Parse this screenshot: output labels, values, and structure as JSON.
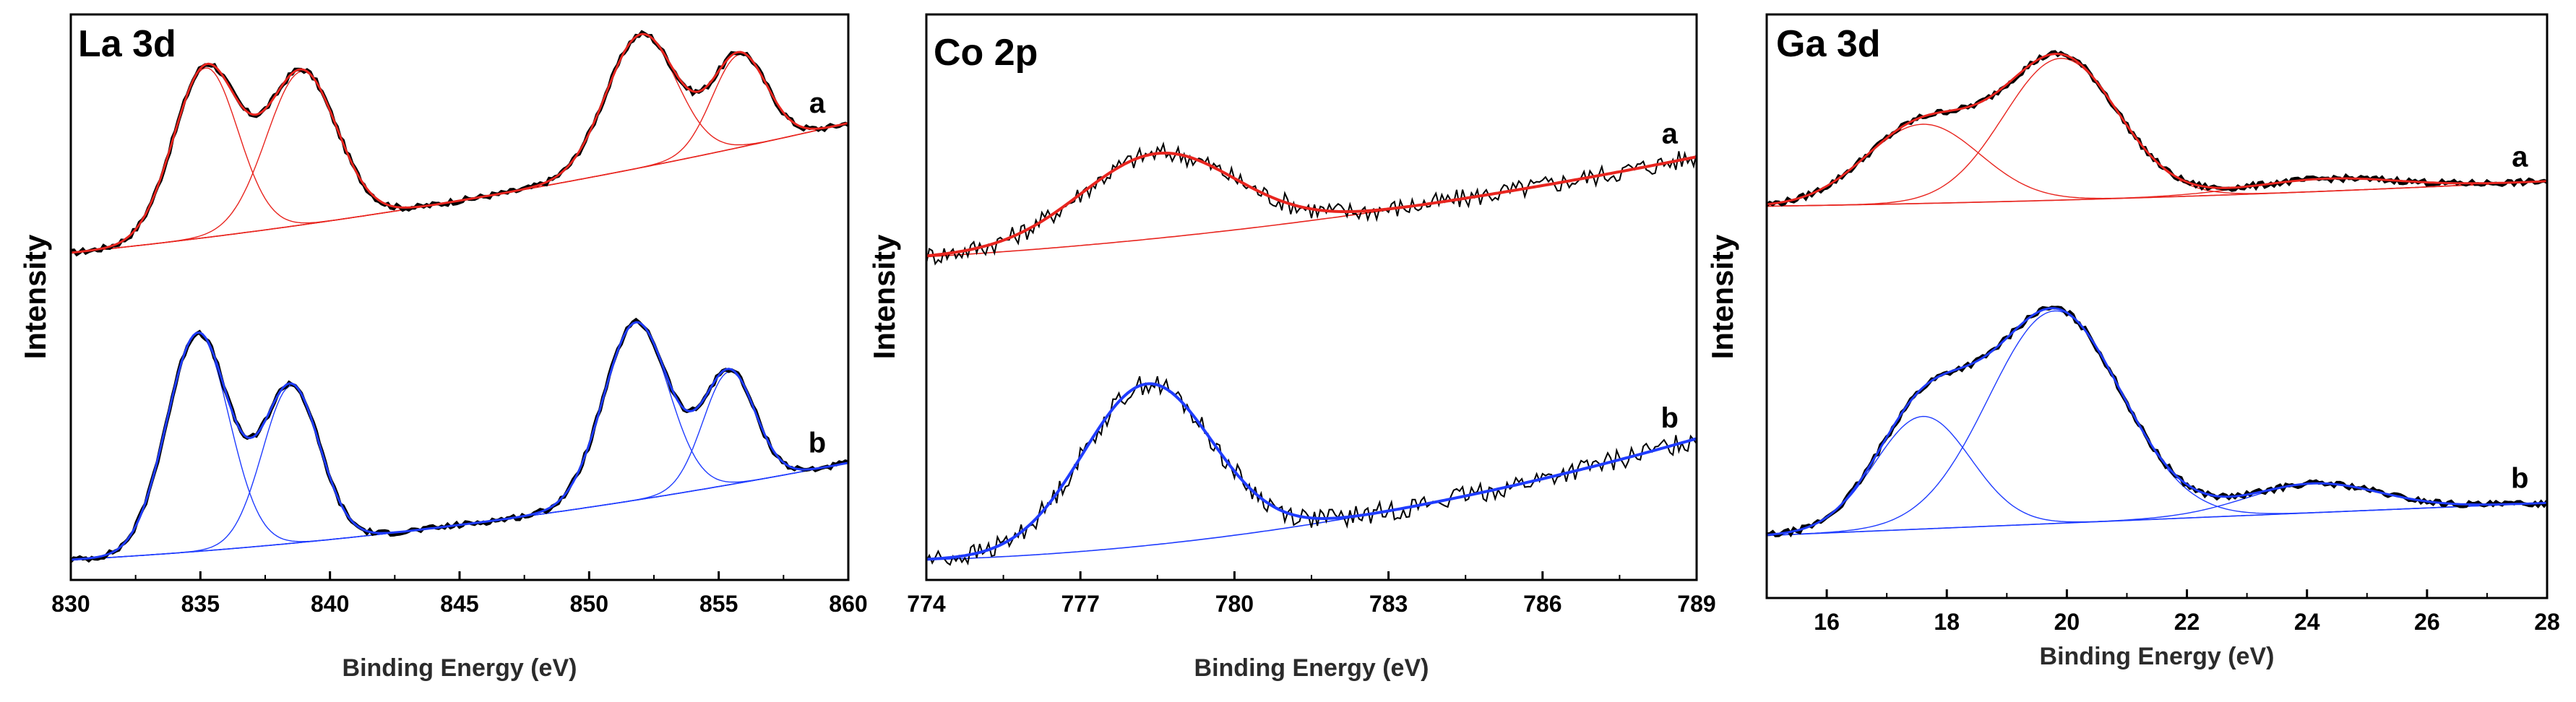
{
  "chart_data": [
    {
      "type": "line",
      "title": "La 3d",
      "xlabel": "Binding Energy (eV)",
      "ylabel": "Intensity",
      "xlim": [
        830,
        860
      ],
      "xticks": [
        830,
        835,
        840,
        845,
        850,
        855,
        860
      ],
      "ylim": [
        -0.05,
        1.35
      ],
      "grid": false,
      "series_labels": [
        "a",
        "b"
      ],
      "series": [
        {
          "name": "a",
          "color": "#e8251f",
          "offset": 0.76,
          "baseline": {
            "slope": 0.0065,
            "curvature": 0.00014
          },
          "components": [
            {
              "center": 835.2,
              "amp": 0.42,
              "width": 1.25
            },
            {
              "center": 838.9,
              "amp": 0.38,
              "width": 1.35
            },
            {
              "center": 852.0,
              "amp": 0.33,
              "width": 1.35
            },
            {
              "center": 855.8,
              "amp": 0.23,
              "width": 1.05
            }
          ]
        },
        {
          "name": "b",
          "color": "#1f3cff",
          "offset": 0.0,
          "baseline": {
            "slope": 0.0035,
            "curvature": 0.00015
          },
          "components": [
            {
              "center": 834.9,
              "amp": 0.54,
              "width": 1.2
            },
            {
              "center": 838.5,
              "amp": 0.39,
              "width": 1.1
            },
            {
              "center": 851.8,
              "amp": 0.44,
              "width": 1.25
            },
            {
              "center": 855.4,
              "amp": 0.28,
              "width": 1.0
            }
          ]
        }
      ]
    },
    {
      "type": "line",
      "title": "Co 2p",
      "xlabel": "Binding Energy (eV)",
      "ylabel": "Intensity",
      "xlim": [
        774,
        789
      ],
      "xticks": [
        774,
        777,
        780,
        783,
        786,
        789
      ],
      "ylim": [
        -0.05,
        1.35
      ],
      "grid": false,
      "series_labels": [
        "a",
        "b"
      ],
      "series": [
        {
          "name": "a",
          "color": "#e8251f",
          "offset": 0.75,
          "baseline": {
            "slope": 0.0075,
            "curvature": 0.0006
          },
          "components": [
            {
              "center": 778.5,
              "amp": 0.21,
              "width": 1.5
            }
          ]
        },
        {
          "name": "b",
          "color": "#1f3cff",
          "offset": 0.0,
          "baseline": {
            "slope": 0.0035,
            "curvature": 0.0011
          },
          "components": [
            {
              "center": 778.3,
              "amp": 0.4,
              "width": 1.25
            }
          ]
        }
      ]
    },
    {
      "type": "line",
      "title": "Ga 3d",
      "xlabel": "Binding Energy (eV)",
      "ylabel": "Intensity",
      "xlim": [
        15,
        28
      ],
      "xticks": [
        16,
        18,
        20,
        22,
        24,
        26,
        28
      ],
      "ylim": [
        -0.05,
        1.35
      ],
      "grid": false,
      "series_labels": [
        "a",
        "b"
      ],
      "series": [
        {
          "name": "a",
          "color": "#e8251f",
          "offset": 0.89,
          "baseline": {
            "slope": 0.002,
            "curvature": 0.0002
          },
          "components": [
            {
              "center": 17.6,
              "amp": 0.19,
              "width": 0.95
            },
            {
              "center": 19.9,
              "amp": 0.34,
              "width": 0.95
            },
            {
              "center": 24.3,
              "amp": 0.03,
              "width": 1.2
            }
          ]
        },
        {
          "name": "b",
          "color": "#1f3cff",
          "offset": 0.1,
          "baseline": {
            "slope": 0.006,
            "curvature": 0.0
          },
          "components": [
            {
              "center": 17.6,
              "amp": 0.27,
              "width": 0.8
            },
            {
              "center": 19.8,
              "amp": 0.51,
              "width": 1.1
            },
            {
              "center": 24.1,
              "amp": 0.07,
              "width": 1.1
            }
          ]
        }
      ]
    }
  ]
}
